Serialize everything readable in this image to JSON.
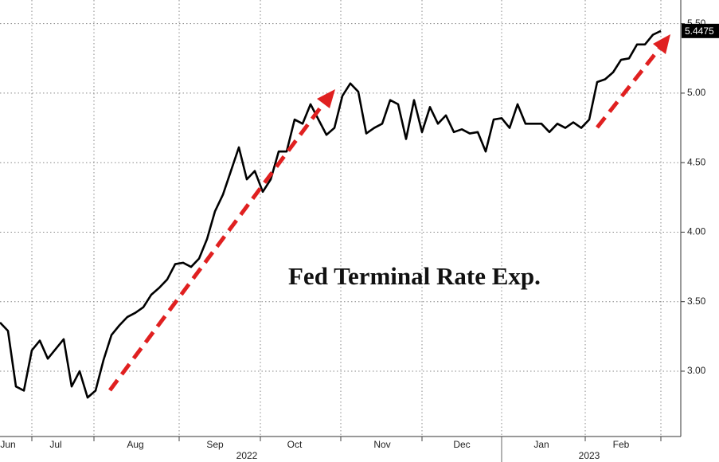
{
  "chart_data": {
    "type": "line",
    "title": "Fed Terminal Rate Exp.",
    "categories": [
      null,
      "Jun",
      null,
      null,
      null,
      null,
      null,
      "Jul",
      null,
      null,
      null,
      null,
      null,
      null,
      null,
      null,
      null,
      "Aug",
      null,
      null,
      null,
      null,
      null,
      null,
      null,
      null,
      null,
      "Sep",
      null,
      null,
      null,
      null,
      null,
      null,
      null,
      null,
      null,
      "Oct",
      null,
      null,
      null,
      null,
      null,
      null,
      null,
      null,
      null,
      null,
      "Nov",
      null,
      null,
      null,
      null,
      null,
      null,
      null,
      null,
      null,
      "Dec",
      null,
      null,
      null,
      null,
      null,
      null,
      null,
      null,
      null,
      "Jan",
      null,
      null,
      null,
      null,
      null,
      null,
      null,
      null,
      null,
      "Feb",
      null,
      null,
      null,
      null,
      null
    ],
    "year_categories": [
      null,
      null,
      null,
      null,
      null,
      null,
      null,
      null,
      null,
      null,
      null,
      null,
      null,
      null,
      null,
      null,
      null,
      null,
      null,
      null,
      null,
      null,
      null,
      null,
      null,
      null,
      null,
      null,
      null,
      null,
      null,
      "2022",
      null,
      null,
      null,
      null,
      null,
      null,
      null,
      null,
      null,
      null,
      null,
      null,
      null,
      null,
      null,
      null,
      null,
      null,
      null,
      null,
      null,
      null,
      null,
      null,
      null,
      null,
      null,
      null,
      null,
      null,
      null,
      null,
      null,
      null,
      null,
      null,
      null,
      null,
      null,
      null,
      null,
      null,
      "2023",
      null,
      null,
      null,
      null,
      null,
      null,
      null,
      null,
      null
    ],
    "series": [
      {
        "name": "Fed Terminal Rate Exp.",
        "color": "#000000",
        "values": [
          3.35,
          3.29,
          2.89,
          2.86,
          3.15,
          3.22,
          3.09,
          3.16,
          3.23,
          2.89,
          3.0,
          2.81,
          2.86,
          3.08,
          3.26,
          3.33,
          3.39,
          3.42,
          3.46,
          3.55,
          3.6,
          3.66,
          3.77,
          3.78,
          3.75,
          3.81,
          3.95,
          4.15,
          4.27,
          4.44,
          4.61,
          4.38,
          4.44,
          4.29,
          4.38,
          4.58,
          4.58,
          4.81,
          4.78,
          4.92,
          4.81,
          4.7,
          4.75,
          4.98,
          5.07,
          5.01,
          4.71,
          4.75,
          4.78,
          4.95,
          4.92,
          4.67,
          4.95,
          4.72,
          4.9,
          4.78,
          4.84,
          4.72,
          4.74,
          4.71,
          4.72,
          4.58,
          4.81,
          4.82,
          4.75,
          4.92,
          4.78,
          4.78,
          4.78,
          4.72,
          4.78,
          4.75,
          4.79,
          4.75,
          4.81,
          5.08,
          5.1,
          5.15,
          5.24,
          5.25,
          5.35,
          5.35,
          5.42,
          5.4475
        ]
      }
    ],
    "ylim": [
      2.53,
      5.67
    ],
    "yticks": [
      {
        "value": 3,
        "label": "3.00"
      },
      {
        "value": 3.5,
        "label": "3.50"
      },
      {
        "value": 4,
        "label": "4.00"
      },
      {
        "value": 4.5,
        "label": "4.50"
      },
      {
        "value": 5,
        "label": "5.00"
      },
      {
        "value": 5.5,
        "label": "5.50"
      }
    ],
    "grid": true
  }
}
